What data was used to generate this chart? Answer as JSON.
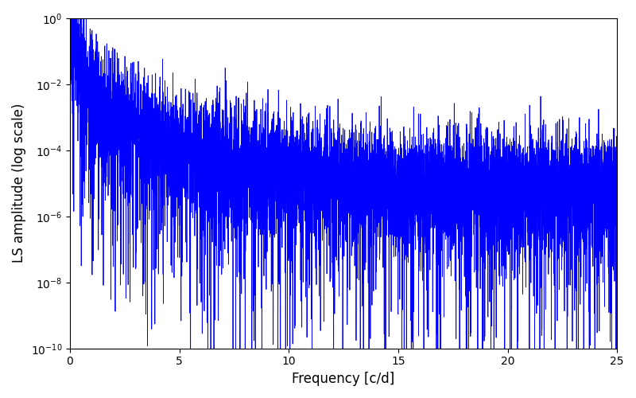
{
  "xlabel": "Frequency [c/d]",
  "ylabel": "LS amplitude (log scale)",
  "xlim": [
    0,
    25
  ],
  "ylim": [
    1e-10,
    1.0
  ],
  "line_color": "#0000ff",
  "line_width": 0.6,
  "background_color": "#ffffff",
  "freq_max": 25.0,
  "n_points": 8000,
  "peak_freq": 0.25,
  "peak_amp": 0.28,
  "noise_floor_log": -5.0,
  "decay_rate": 2.5,
  "seed": 137
}
